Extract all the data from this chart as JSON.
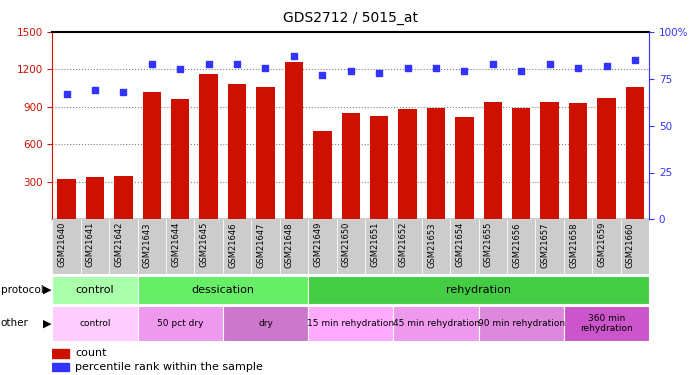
{
  "title": "GDS2712 / 5015_at",
  "samples": [
    "GSM21640",
    "GSM21641",
    "GSM21642",
    "GSM21643",
    "GSM21644",
    "GSM21645",
    "GSM21646",
    "GSM21647",
    "GSM21648",
    "GSM21649",
    "GSM21650",
    "GSM21651",
    "GSM21652",
    "GSM21653",
    "GSM21654",
    "GSM21655",
    "GSM21656",
    "GSM21657",
    "GSM21658",
    "GSM21659",
    "GSM21660"
  ],
  "counts": [
    320,
    340,
    345,
    1020,
    960,
    1160,
    1080,
    1060,
    1260,
    710,
    850,
    830,
    880,
    890,
    820,
    940,
    895,
    940,
    930,
    970,
    1060
  ],
  "percentiles": [
    67,
    69,
    68,
    83,
    80,
    83,
    83,
    81,
    87,
    77,
    79,
    78,
    81,
    81,
    79,
    83,
    79,
    83,
    81,
    82,
    85
  ],
  "ylim_left": [
    0,
    1500
  ],
  "ylim_right": [
    0,
    100
  ],
  "yticks_left": [
    300,
    600,
    900,
    1200,
    1500
  ],
  "yticks_right": [
    0,
    25,
    50,
    75,
    100
  ],
  "bar_color": "#cc1100",
  "dot_color": "#3333ff",
  "background_color": "#ffffff",
  "plot_bg": "#ffffff",
  "xtick_bg": "#cccccc",
  "protocol_groups": [
    {
      "label": "control",
      "start": 0,
      "end": 3,
      "color": "#aaffaa"
    },
    {
      "label": "dessication",
      "start": 3,
      "end": 9,
      "color": "#66ee66"
    },
    {
      "label": "rehydration",
      "start": 9,
      "end": 21,
      "color": "#44cc44"
    }
  ],
  "other_groups": [
    {
      "label": "control",
      "start": 0,
      "end": 3,
      "color": "#ffccff"
    },
    {
      "label": "50 pct dry",
      "start": 3,
      "end": 6,
      "color": "#ee99ee"
    },
    {
      "label": "dry",
      "start": 6,
      "end": 9,
      "color": "#cc77cc"
    },
    {
      "label": "15 min rehydration",
      "start": 9,
      "end": 12,
      "color": "#ffaaff"
    },
    {
      "label": "45 min rehydration",
      "start": 12,
      "end": 15,
      "color": "#ee99ee"
    },
    {
      "label": "90 min rehydration",
      "start": 15,
      "end": 18,
      "color": "#dd88dd"
    },
    {
      "label": "360 min\nrehydration",
      "start": 18,
      "end": 21,
      "color": "#cc55cc"
    }
  ]
}
